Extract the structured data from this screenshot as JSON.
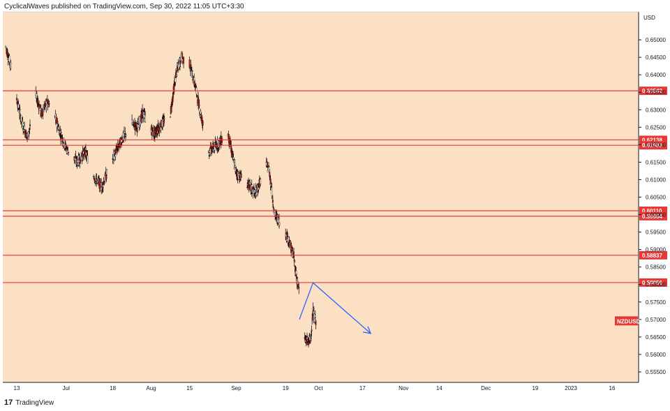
{
  "header": {
    "text": "CyclicalWaves published on TradingView.com, Sep 30, 2022 11:05 UTC+3:30"
  },
  "footer": {
    "logo": "17",
    "brand": "TradingView"
  },
  "colors": {
    "background": "#fbe0c3",
    "level": "#e53935",
    "candle": "#b71c1c",
    "arrow": "#2962ff"
  },
  "chart_data": {
    "type": "candlestick",
    "symbol": "NZDUSD",
    "currency": "USD",
    "ylim": [
      0.552,
      0.658
    ],
    "y_ticks": [
      "0.65000",
      "0.64500",
      "0.64000",
      "0.63500",
      "0.63000",
      "0.62500",
      "0.62000",
      "0.61500",
      "0.61000",
      "0.60500",
      "0.60000",
      "0.59500",
      "0.59000",
      "0.58500",
      "0.58000",
      "0.57500",
      "0.57000",
      "0.56500",
      "0.56000",
      "0.55500"
    ],
    "x_ticks": [
      {
        "label": "13",
        "date": "2022-06-13"
      },
      {
        "label": "Jul",
        "date": "2022-07-01"
      },
      {
        "label": "18",
        "date": "2022-07-18"
      },
      {
        "label": "Aug",
        "date": "2022-08-01"
      },
      {
        "label": "15",
        "date": "2022-08-15"
      },
      {
        "label": "Sep",
        "date": "2022-09-01"
      },
      {
        "label": "19",
        "date": "2022-09-19"
      },
      {
        "label": "Oct",
        "date": "2022-10-01"
      },
      {
        "label": "17",
        "date": "2022-10-17"
      },
      {
        "label": "Nov",
        "date": "2022-11-01"
      },
      {
        "label": "14",
        "date": "2022-11-14"
      },
      {
        "label": "Dec",
        "date": "2022-12-01"
      },
      {
        "label": "19",
        "date": "2022-12-19"
      },
      {
        "label": "2023",
        "date": "2023-01-01"
      },
      {
        "label": "16",
        "date": "2023-01-16"
      }
    ],
    "levels": [
      "0.63542",
      "0.62138",
      "0.61983",
      "0.60110",
      "0.59954",
      "0.58837",
      "0.58056"
    ],
    "current_label": "NZDUSD",
    "current_price": 0.5695,
    "price_path": [
      {
        "date": "2022-06-09",
        "price": 0.648
      },
      {
        "date": "2022-06-11",
        "price": 0.642
      },
      {
        "date": "2022-06-13",
        "price": 0.633
      },
      {
        "date": "2022-06-15",
        "price": 0.626
      },
      {
        "date": "2022-06-17",
        "price": 0.622
      },
      {
        "date": "2022-06-20",
        "price": 0.634
      },
      {
        "date": "2022-06-22",
        "price": 0.629
      },
      {
        "date": "2022-06-24",
        "price": 0.632
      },
      {
        "date": "2022-06-27",
        "price": 0.628
      },
      {
        "date": "2022-06-29",
        "price": 0.623
      },
      {
        "date": "2022-07-01",
        "price": 0.619
      },
      {
        "date": "2022-07-05",
        "price": 0.615
      },
      {
        "date": "2022-07-08",
        "price": 0.618
      },
      {
        "date": "2022-07-11",
        "price": 0.611
      },
      {
        "date": "2022-07-14",
        "price": 0.608
      },
      {
        "date": "2022-07-18",
        "price": 0.616
      },
      {
        "date": "2022-07-21",
        "price": 0.621
      },
      {
        "date": "2022-07-25",
        "price": 0.626
      },
      {
        "date": "2022-07-27",
        "price": 0.625
      },
      {
        "date": "2022-07-29",
        "price": 0.629
      },
      {
        "date": "2022-08-02",
        "price": 0.623
      },
      {
        "date": "2022-08-05",
        "price": 0.626
      },
      {
        "date": "2022-08-08",
        "price": 0.629
      },
      {
        "date": "2022-08-10",
        "price": 0.64
      },
      {
        "date": "2022-08-12",
        "price": 0.645
      },
      {
        "date": "2022-08-15",
        "price": 0.643
      },
      {
        "date": "2022-08-17",
        "price": 0.637
      },
      {
        "date": "2022-08-19",
        "price": 0.629
      },
      {
        "date": "2022-08-22",
        "price": 0.618
      },
      {
        "date": "2022-08-25",
        "price": 0.62
      },
      {
        "date": "2022-08-29",
        "price": 0.623
      },
      {
        "date": "2022-09-01",
        "price": 0.612
      },
      {
        "date": "2022-09-05",
        "price": 0.609
      },
      {
        "date": "2022-09-08",
        "price": 0.606
      },
      {
        "date": "2022-09-12",
        "price": 0.614
      },
      {
        "date": "2022-09-13",
        "price": 0.613
      },
      {
        "date": "2022-09-15",
        "price": 0.6
      },
      {
        "date": "2022-09-16",
        "price": 0.599
      },
      {
        "date": "2022-09-20",
        "price": 0.593
      },
      {
        "date": "2022-09-22",
        "price": 0.588
      },
      {
        "date": "2022-09-23",
        "price": 0.582
      },
      {
        "date": "2022-09-24",
        "price": 0.578
      },
      {
        "date": "2022-09-26",
        "price": 0.564
      },
      {
        "date": "2022-09-28",
        "price": 0.564
      },
      {
        "date": "2022-09-29",
        "price": 0.572
      },
      {
        "date": "2022-09-30",
        "price": 0.5695
      }
    ],
    "projection": [
      {
        "date": "2022-09-24",
        "price": 0.57
      },
      {
        "date": "2022-09-29",
        "price": 0.5805
      },
      {
        "date": "2022-10-20",
        "price": 0.566
      }
    ]
  }
}
